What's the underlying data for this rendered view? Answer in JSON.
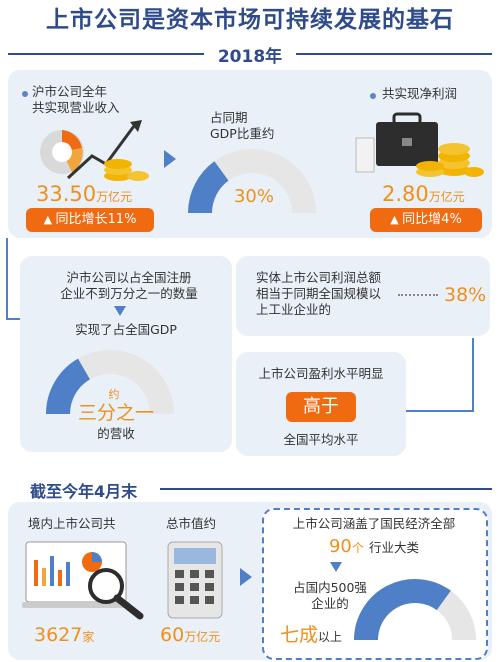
{
  "title": "上市公司是资本市场可持续发展的基石",
  "year_label": "2018年",
  "revenue": {
    "label": "沪市公司全年\n共实现营业收入",
    "value": "33.50",
    "unit": "万亿元",
    "growth": "同比增长11%"
  },
  "gdp_share": {
    "label": "占同期\nGDP比重约",
    "percent": "30%",
    "fraction": 0.3
  },
  "profit": {
    "label": "共实现净利润",
    "value": "2.80",
    "unit": "万亿元",
    "growth": "同比增4%"
  },
  "register": {
    "text": "沪市公司以占全国注册\n企业不到万分之一的数量",
    "gdp_text": "实现了占全国GDP",
    "approx": "约",
    "fraction_text": "三分之一",
    "tail": "的营收",
    "fraction": 0.333
  },
  "profit_scale": {
    "text": "实体上市公司利润总额\n相当于同期全国规模以\n上工业企业的",
    "percent": "38%"
  },
  "margin": {
    "text": "上市公司盈利水平明显",
    "badge": "高于",
    "tail": "全国平均水平"
  },
  "section2_title": "截至今年4月末",
  "listed": {
    "label": "境内上市公司共",
    "value": "3627",
    "unit": "家"
  },
  "market_cap": {
    "label": "总市值约",
    "value": "60",
    "unit": "万亿元"
  },
  "coverage": {
    "text": "上市公司涵盖了国民经济全部",
    "value": "90",
    "unit": "个",
    "tail": "行业大类",
    "top500_text": "占国内500强\n企业的",
    "share": "七成",
    "share_tail": "以上",
    "fraction": 0.7
  },
  "colors": {
    "accent_blue": "#2f4b8a",
    "gauge_blue": "#4f7fc7",
    "gauge_gray": "#e6e6e6",
    "orange": "#f06a12",
    "num_orange": "#f0901a"
  }
}
